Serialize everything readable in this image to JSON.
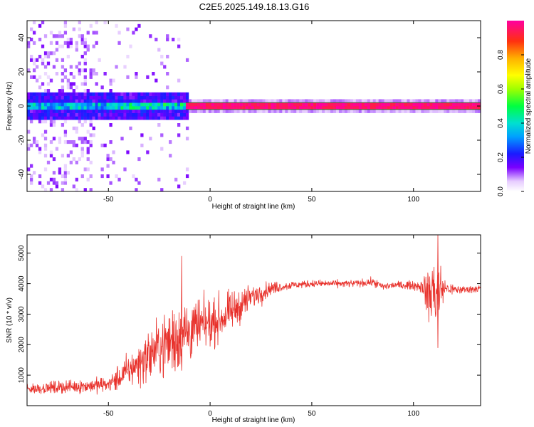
{
  "title": "C2E5.2025.149.18.13.G16",
  "colors": {
    "snr_line": "#e8312b",
    "frame": "#000000",
    "background": "#ffffff"
  },
  "chart_data": [
    {
      "type": "heatmap",
      "xlabel": "Height of straight line (km)",
      "ylabel": "Frequency (Hz)",
      "xlim": [
        -90,
        133
      ],
      "ylim": [
        -50,
        50
      ],
      "x_ticks": [
        "-50",
        "0",
        "50",
        "100"
      ],
      "x_tick_values": [
        -50,
        0,
        50,
        100
      ],
      "y_ticks": [
        "40",
        "20",
        "0",
        "-20",
        "-40"
      ],
      "y_tick_values": [
        40,
        20,
        0,
        -20,
        -40
      ],
      "colorbar": {
        "label": "Normalized spectral amplitude",
        "range": [
          0,
          1
        ],
        "ticks": [
          "0.0",
          "0.2",
          "0.4",
          "0.6",
          "0.8"
        ],
        "tick_values": [
          0,
          0.2,
          0.4,
          0.6,
          0.8
        ]
      },
      "ridge": {
        "frequency": 0,
        "x_start": -12,
        "x_end": 133,
        "amplitude": 1.0
      },
      "noise_region": {
        "x_start": -90,
        "x_end": -10,
        "frequency_spread": [
          -8,
          8
        ]
      }
    },
    {
      "type": "line",
      "xlabel": "Height of straight line (km)",
      "ylabel": "SNR (10 * v/v)",
      "xlim": [
        -90,
        133
      ],
      "ylim": [
        0,
        5600
      ],
      "x_ticks": [
        "-50",
        "0",
        "50",
        "100"
      ],
      "x_tick_values": [
        -50,
        0,
        50,
        100
      ],
      "y_ticks": [
        "1000",
        "2000",
        "3000",
        "4000",
        "5000"
      ],
      "y_tick_values": [
        1000,
        2000,
        3000,
        4000,
        5000
      ],
      "series": [
        {
          "x": [
            -90,
            -80,
            -70,
            -60,
            -50,
            -45,
            -40,
            -35,
            -30,
            -25,
            -20,
            -15,
            -10,
            -5,
            0,
            5,
            10,
            15,
            20,
            25,
            30,
            35,
            40,
            50,
            60,
            70,
            80,
            85,
            90,
            95,
            100,
            105,
            107,
            110,
            112,
            115,
            120,
            125,
            133
          ],
          "y": [
            550,
            580,
            620,
            650,
            700,
            900,
            1150,
            1400,
            1650,
            1900,
            2100,
            2300,
            2450,
            2600,
            2700,
            2850,
            3050,
            3300,
            3550,
            3700,
            3850,
            3900,
            3950,
            4000,
            4000,
            4000,
            4050,
            3900,
            3950,
            3950,
            3950,
            3900,
            3600,
            3800,
            3700,
            3850,
            3800,
            3800,
            3850
          ],
          "amplitude": [
            150,
            180,
            200,
            220,
            250,
            400,
            500,
            650,
            800,
            900,
            1100,
            1200,
            1000,
            800,
            700,
            650,
            600,
            500,
            400,
            300,
            200,
            150,
            120,
            110,
            110,
            110,
            120,
            120,
            120,
            120,
            130,
            250,
            900,
            1300,
            1200,
            300,
            150,
            120,
            120
          ]
        }
      ],
      "annotations_peaks": [
        {
          "x": -14,
          "y": 4900
        },
        {
          "x": 112,
          "y": 5600
        },
        {
          "x": 112,
          "y": 1900
        }
      ]
    }
  ]
}
